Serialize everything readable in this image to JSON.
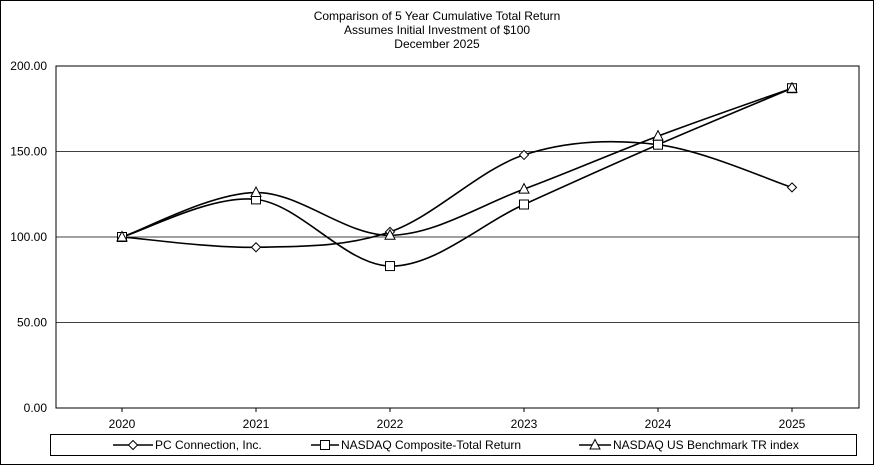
{
  "chart_data": {
    "type": "line",
    "title": "Comparison of 5 Year Cumulative Total Return",
    "subtitle_lines": [
      "Assumes Initial Investment of $100",
      "December 2025"
    ],
    "categories": [
      "2020",
      "2021",
      "2022",
      "2023",
      "2024",
      "2025"
    ],
    "ylim": [
      0,
      200
    ],
    "yticks": [
      "0.00",
      "50.00",
      "100.00",
      "150.00",
      "200.00"
    ],
    "grid": true,
    "legend_position": "bottom",
    "series": [
      {
        "name": "PC Connection, Inc.",
        "marker": "diamond",
        "values": [
          100,
          94,
          103,
          148,
          154,
          129
        ]
      },
      {
        "name": "NASDAQ Composite-Total Return",
        "marker": "square",
        "values": [
          100,
          122,
          83,
          119,
          154,
          187
        ]
      },
      {
        "name": "NASDAQ US Benchmark TR index",
        "marker": "triangle",
        "values": [
          100,
          126,
          101,
          128,
          159,
          187
        ]
      }
    ],
    "colors": {
      "line": "#000000",
      "grid": "#000000",
      "marker_fill": "#ffffff"
    }
  }
}
